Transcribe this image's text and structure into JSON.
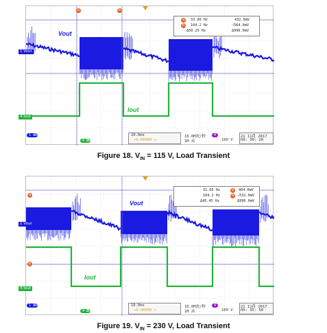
{
  "figures": [
    {
      "caption_prefix": "Figure 18.  V",
      "caption_sub": "IN",
      "caption_suffix": " = 115 V, Load Transient",
      "labels": {
        "vout": "Vout",
        "iout": "Iout"
      },
      "channel_tags": {
        "ch1": "Vout",
        "ch4": "Iout"
      },
      "cursor_markers": {
        "a": "a",
        "b": "b"
      },
      "measurements": {
        "freq1": "33.90 Hz",
        "freq2": "104.2 Hz",
        "dfreq": "Δ50.25 Hz",
        "v1": "432.0mV",
        "v2": "−564.0mV",
        "dv": "Δ996.0mV"
      },
      "status": {
        "ch1_scale": "200mV",
        "ch4_scale": "500mA",
        "timebase": "10.0ms",
        "trigger_pos": "+0.00000 s",
        "sample_rate": "10.0M次/秒",
        "record_len": "1M 点",
        "trig_level": "100 V",
        "date": "21 11月  2017",
        "time": "09: 30: 20"
      }
    },
    {
      "caption_prefix": "Figure 19.  V",
      "caption_sub": "IN",
      "caption_suffix": " = 230 V, Load Transient",
      "labels": {
        "vout": "Vout",
        "iout": "Iout"
      },
      "channel_tags": {
        "ch1": "Vout",
        "ch4": "Iout"
      },
      "cursor_markers": {
        "a": "a",
        "b": "b"
      },
      "measurements": {
        "freq1": "31.65 Hz",
        "freq2": "104.2 Hz",
        "dfreq": "Δ45.45 Hz",
        "v1": "464.0mV",
        "v2": "−532.0mV",
        "dv": "Δ996.0mV"
      },
      "status": {
        "ch1_scale": "200mV",
        "ch4_scale": "500mA",
        "timebase": "10.0ms",
        "trigger_pos": "+0.00000 s",
        "sample_rate": "10.0M次/秒",
        "record_len": "1M 点",
        "trig_level": "100 V",
        "date": "21 11月  2017",
        "time": "09: 35: 50"
      }
    }
  ],
  "colors": {
    "vout_trace": "#1a1ae0",
    "iout_trace": "#22b43c",
    "cursor": "#6a6acc",
    "marker_orange": "#e8642a",
    "marker_gold": "#e0a020"
  }
}
